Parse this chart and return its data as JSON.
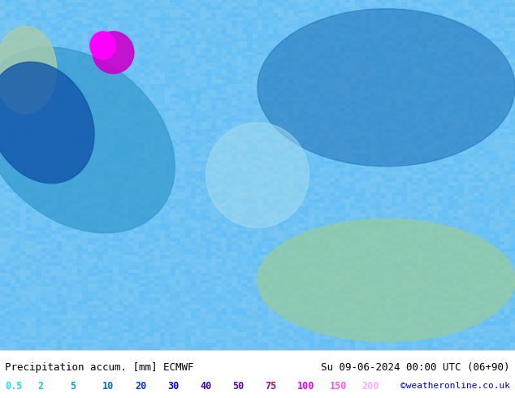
{
  "title_left": "Precipitation accum. [mm] ECMWF",
  "title_right": "Su 09-06-2024 00:00 UTC (06+90)",
  "credit": "©weatheronline.co.uk",
  "legend_values": [
    "0.5",
    "2",
    "5",
    "10",
    "20",
    "30",
    "40",
    "50",
    "75",
    "100",
    "150",
    "200"
  ],
  "legend_colors": [
    "#00ffff",
    "#00ddff",
    "#00aaff",
    "#0077ff",
    "#0044ff",
    "#0000ff",
    "#4400cc",
    "#8800aa",
    "#cc0088",
    "#ff00ff",
    "#ff44ff",
    "#ff88ff"
  ],
  "bg_color": "#ffffff",
  "bottom_bar_color": "#ffffff",
  "text_color": "#000000",
  "map_bg_color": "#7ec8e3",
  "figure_width": 6.34,
  "figure_height": 4.9,
  "dpi": 100
}
